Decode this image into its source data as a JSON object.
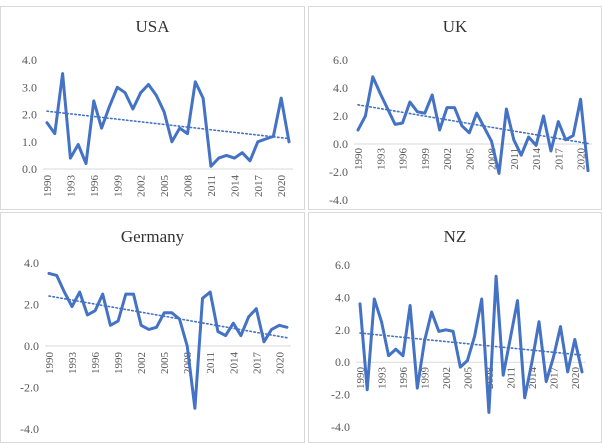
{
  "colors": {
    "line": "#4472c4",
    "trend": "#4472c4",
    "grid": "#d9d9d9",
    "text": "#595959"
  },
  "chart_data": [
    {
      "type": "line",
      "title": "USA",
      "ylim": [
        0,
        4
      ],
      "yticks": [
        "0.0",
        "1.0",
        "2.0",
        "3.0",
        "4.0"
      ],
      "ytick_values": [
        0,
        1,
        2,
        3,
        4
      ],
      "x_tick_labels": [
        "1990",
        "1993",
        "1996",
        "1999",
        "2002",
        "2005",
        "2008",
        "2011",
        "2014",
        "2017",
        "2020"
      ],
      "trendline": "linear, dotted",
      "grid": false,
      "series": [
        {
          "x": [
            1990,
            1991,
            1992,
            1993,
            1994,
            1995,
            1996,
            1997,
            1998,
            1999,
            2000,
            2001,
            2002,
            2003,
            2004,
            2005,
            2006,
            2007,
            2008,
            2009,
            2010,
            2011,
            2012,
            2013,
            2014,
            2015,
            2016,
            2017,
            2018,
            2019,
            2020,
            2021
          ],
          "values": [
            1.7,
            1.3,
            3.5,
            0.4,
            0.9,
            0.2,
            2.5,
            1.5,
            2.3,
            3.0,
            2.8,
            2.2,
            2.8,
            3.1,
            2.7,
            2.1,
            1.0,
            1.5,
            1.3,
            3.2,
            2.6,
            0.1,
            0.4,
            0.5,
            0.4,
            0.6,
            0.3,
            1.0,
            1.1,
            1.2,
            2.6,
            1.0
          ]
        }
      ]
    },
    {
      "type": "line",
      "title": "UK",
      "ylim": [
        -4,
        6
      ],
      "yticks": [
        "-4.0",
        "-2.0",
        "0.0",
        "2.0",
        "4.0",
        "6.0"
      ],
      "ytick_values": [
        -4,
        -2,
        0,
        2,
        4,
        6
      ],
      "x_tick_labels": [
        "1990",
        "1993",
        "1996",
        "1999",
        "2002",
        "2005",
        "2008",
        "2011",
        "2014",
        "2017",
        "2020"
      ],
      "trendline": "linear, dotted",
      "grid": false,
      "series": [
        {
          "x": [
            1990,
            1991,
            1992,
            1993,
            1994,
            1995,
            1996,
            1997,
            1998,
            1999,
            2000,
            2001,
            2002,
            2003,
            2004,
            2005,
            2006,
            2007,
            2008,
            2009,
            2010,
            2011,
            2012,
            2013,
            2014,
            2015,
            2016,
            2017,
            2018,
            2019,
            2020,
            2021
          ],
          "values": [
            1.0,
            2.0,
            4.8,
            3.6,
            2.5,
            1.4,
            1.5,
            3.0,
            2.3,
            2.2,
            3.5,
            1.0,
            2.6,
            2.6,
            1.3,
            0.8,
            2.2,
            1.2,
            0.2,
            -2.1,
            2.5,
            0.3,
            -0.8,
            0.5,
            -0.1,
            2.0,
            -0.5,
            1.6,
            0.3,
            0.6,
            3.2,
            -1.9
          ]
        }
      ]
    },
    {
      "type": "line",
      "title": "Germany",
      "ylim": [
        -4,
        4
      ],
      "yticks": [
        "-4.0",
        "-2.0",
        "0.0",
        "2.0",
        "4.0"
      ],
      "ytick_values": [
        -4,
        -2,
        0,
        2,
        4
      ],
      "x_tick_labels": [
        "1990",
        "1993",
        "1996",
        "1999",
        "2002",
        "2005",
        "2008",
        "2011",
        "2014",
        "2017",
        "2020"
      ],
      "trendline": "linear, dotted",
      "grid": false,
      "series": [
        {
          "x": [
            1990,
            1991,
            1992,
            1993,
            1994,
            1995,
            1996,
            1997,
            1998,
            1999,
            2000,
            2001,
            2002,
            2003,
            2004,
            2005,
            2006,
            2007,
            2008,
            2009,
            2010,
            2011,
            2012,
            2013,
            2014,
            2015,
            2016,
            2017,
            2018,
            2019,
            2020,
            2021
          ],
          "values": [
            3.5,
            3.4,
            2.6,
            1.9,
            2.6,
            1.5,
            1.7,
            2.5,
            1.0,
            1.2,
            2.5,
            2.5,
            1.0,
            0.8,
            0.9,
            1.6,
            1.6,
            1.3,
            0.0,
            -3.0,
            2.3,
            2.6,
            0.7,
            0.5,
            1.1,
            0.5,
            1.4,
            1.8,
            0.2,
            0.8,
            1.0,
            0.9
          ]
        }
      ]
    },
    {
      "type": "line",
      "title": "NZ",
      "ylim": [
        -4,
        6
      ],
      "yticks": [
        "-4.0",
        "-2.0",
        "0.0",
        "2.0",
        "4.0",
        "6.0"
      ],
      "ytick_values": [
        -4,
        -2,
        0,
        2,
        4,
        6
      ],
      "x_tick_labels": [
        "1990",
        "1993",
        "1996",
        "1999",
        "2002",
        "2005",
        "2008",
        "2011",
        "2014",
        "2017",
        "2020"
      ],
      "trendline": "linear, dotted",
      "grid": false,
      "series": [
        {
          "x": [
            1990,
            1991,
            1992,
            1993,
            1994,
            1995,
            1996,
            1997,
            1998,
            1999,
            2000,
            2001,
            2002,
            2003,
            2004,
            2005,
            2006,
            2007,
            2008,
            2009,
            2010,
            2011,
            2012,
            2013,
            2014,
            2015,
            2016,
            2017,
            2018,
            2019,
            2020,
            2021
          ],
          "values": [
            3.6,
            -1.7,
            3.9,
            2.5,
            0.4,
            0.8,
            0.4,
            3.5,
            -1.6,
            1.3,
            3.1,
            1.9,
            2.0,
            1.9,
            -0.3,
            0.1,
            1.6,
            3.9,
            -3.1,
            5.3,
            -0.8,
            1.5,
            3.8,
            -2.2,
            0.0,
            2.5,
            -1.2,
            0.3,
            2.2,
            -0.6,
            1.4,
            -0.6
          ]
        }
      ]
    }
  ]
}
